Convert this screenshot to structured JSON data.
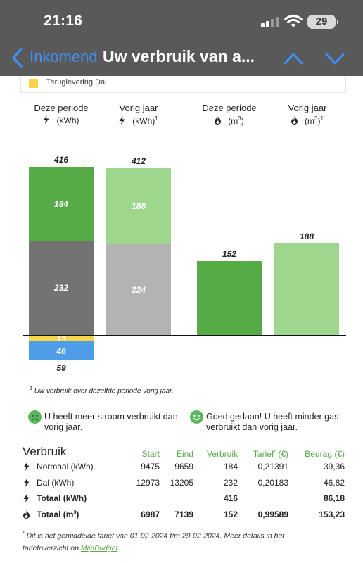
{
  "status_bar": {
    "time": "21:16",
    "battery": "29",
    "icons": [
      "signal-icon",
      "wifi-icon",
      "battery-icon"
    ]
  },
  "nav": {
    "back_label": "Inkomend",
    "title": "Uw verbruik van a...",
    "icons": [
      "chevron-left-icon",
      "chevron-up-icon",
      "chevron-down-icon"
    ]
  },
  "legend": {
    "teruglevering_dal": {
      "label": "Teruglevering Dal",
      "color": "#f7d54a"
    }
  },
  "columns": {
    "stroom_deze": {
      "title": "Deze periode",
      "unit": "(kWh)",
      "sup": ""
    },
    "stroom_vorig": {
      "title": "Vorig jaar",
      "unit": "(kWh)",
      "sup": "1"
    },
    "gas_deze": {
      "title": "Deze periode",
      "unit_prefix": "(m",
      "unit_exp": "3",
      "unit_suffix": ")",
      "sup": ""
    },
    "gas_vorig": {
      "title": "Vorig jaar",
      "unit_prefix": "(m",
      "unit_exp": "3",
      "unit_suffix": ")",
      "sup": "1"
    }
  },
  "chart_data": [
    {
      "type": "bar",
      "title": "",
      "xlabel": "",
      "ylabel": "",
      "categories": [
        "Deze periode",
        "Vorig jaar"
      ],
      "stacked": true,
      "series": [
        {
          "name": "",
          "values": [
            232,
            224
          ],
          "colors": [
            "#737373",
            "#b3b3b3"
          ]
        },
        {
          "name": "",
          "values": [
            184,
            188
          ],
          "colors": [
            "#57ab47",
            "#9dd68c"
          ]
        },
        {
          "name": "Teruglevering Dal",
          "values": [
            -13,
            null
          ],
          "colors": [
            "#f7d54a",
            null
          ]
        },
        {
          "name": "",
          "values": [
            -46,
            null
          ],
          "colors": [
            "#4d9de8",
            null
          ]
        }
      ],
      "totals": [
        416,
        412
      ],
      "negative_total": 59
    },
    {
      "type": "bar",
      "title": "",
      "xlabel": "",
      "ylabel": "",
      "categories": [
        "Deze periode",
        "Vorig jaar"
      ],
      "series": [
        {
          "name": "",
          "values": [
            152,
            188
          ],
          "colors": [
            "#57ab47",
            "#9dd68c"
          ]
        }
      ]
    }
  ],
  "footnote": {
    "marker": "1",
    "text": "Uw verbruik over dezelfde periode vorig jaar."
  },
  "messages": {
    "stroom": {
      "text_line1": "U heeft meer stroom verbruikt dan",
      "text_line2": "vorig jaar.",
      "icon": "sad-face-icon"
    },
    "gas": {
      "text_line1": "Goed gedaan! U heeft minder gas",
      "text_line2": "verbruikt dan vorig jaar.",
      "icon": "happy-face-icon"
    }
  },
  "table": {
    "title": "Verbruik",
    "headers": {
      "start": "Start",
      "eind": "Eind",
      "verbruik": "Verbruik",
      "tarief": "Tarief",
      "tarief_sup": "*",
      "tarief_unit": " (€)",
      "bedrag": "Bedrag (€)"
    },
    "rows": [
      {
        "icon": "lightning-icon",
        "label": "Normaal (kWh)",
        "start": "9475",
        "eind": "9659",
        "verbruik": "184",
        "tarief": "0,21391",
        "bedrag": "39,36",
        "bold": false
      },
      {
        "icon": "lightning-icon",
        "label": "Dal (kWh)",
        "start": "12973",
        "eind": "13205",
        "verbruik": "232",
        "tarief": "0,20183",
        "bedrag": "46,82",
        "bold": false
      },
      {
        "icon": "lightning-icon",
        "label": "Totaal (kWh)",
        "start": "",
        "eind": "",
        "verbruik": "416",
        "tarief": "",
        "bedrag": "86,18",
        "bold": true
      },
      {
        "icon": "flame-icon",
        "label_prefix": "Totaal (m",
        "label_exp": "3",
        "label_suffix": ")",
        "start": "6987",
        "eind": "7139",
        "verbruik": "152",
        "tarief": "0,99589",
        "bedrag": "153,23",
        "bold": true
      }
    ]
  },
  "note": {
    "marker": "*",
    "text": "Dit is het gemiddelde tarief van 01-02-2024 t/m 29-02-2024. Meer details in het tariefoverzicht op ",
    "link": "MijnBudget",
    "end": "."
  }
}
